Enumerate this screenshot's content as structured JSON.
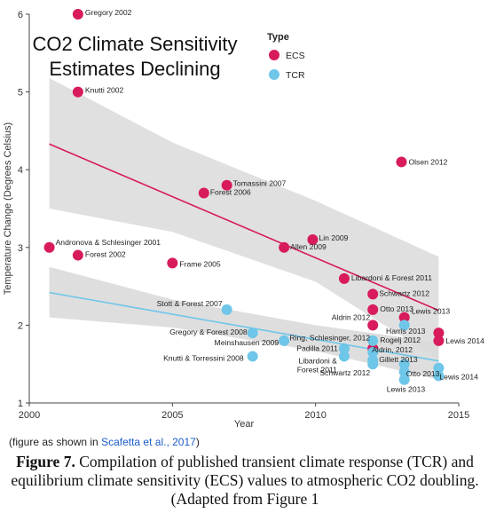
{
  "chart_data": {
    "type": "scatter",
    "title_lines": [
      "CO2 Climate Sensitivity",
      "Estimates Declining"
    ],
    "xlabel": "Year",
    "ylabel": "Temperature Change (Degrees Celsius)",
    "xlim": [
      2000,
      2015
    ],
    "ylim": [
      1,
      6
    ],
    "x_ticks": [
      2000,
      2005,
      2010,
      2015
    ],
    "y_ticks": [
      1,
      2,
      3,
      4,
      5,
      6
    ],
    "legend_title": "Type",
    "series": [
      {
        "name": "ECS",
        "color": "#d81b5c",
        "trend": [
          [
            2000.7,
            4.33
          ],
          [
            2014.3,
            2.19
          ]
        ],
        "band_upper": [
          [
            2000.7,
            5.18
          ],
          [
            2005,
            4.35
          ],
          [
            2010,
            3.6
          ],
          [
            2014.3,
            2.88
          ]
        ],
        "band_lower": [
          [
            2000.7,
            3.5
          ],
          [
            2005,
            3.2
          ],
          [
            2010,
            2.56
          ],
          [
            2014.3,
            1.56
          ]
        ],
        "points": [
          {
            "x": 2001.7,
            "y": 6.0,
            "label": "Gregory 2002"
          },
          {
            "x": 2001.7,
            "y": 5.0,
            "label": "Knutti 2002"
          },
          {
            "x": 2013.0,
            "y": 4.1,
            "label": "Olsen 2012"
          },
          {
            "x": 2006.9,
            "y": 3.8,
            "label": "Tomassini 2007"
          },
          {
            "x": 2006.1,
            "y": 3.7,
            "label": "Forest 2006"
          },
          {
            "x": 2009.9,
            "y": 3.1,
            "label": "Lin 2009"
          },
          {
            "x": 2000.7,
            "y": 3.0,
            "label": "Andronova & Schlesinger 2001"
          },
          {
            "x": 2008.9,
            "y": 3.0,
            "label": "Allen 2009"
          },
          {
            "x": 2001.7,
            "y": 2.9,
            "label": "Forest 2002"
          },
          {
            "x": 2005.0,
            "y": 2.8,
            "label": "Frame 2005"
          },
          {
            "x": 2011.0,
            "y": 2.6,
            "label": "Libardoni & Forest 2011"
          },
          {
            "x": 2012.0,
            "y": 2.4,
            "label": "Schwartz 2012"
          },
          {
            "x": 2012.0,
            "y": 2.2,
            "label": "Otto 2013"
          },
          {
            "x": 2013.1,
            "y": 2.1,
            "label": "Lewis 2013"
          },
          {
            "x": 2012.0,
            "y": 2.0,
            "label": "Aldrin 2012"
          },
          {
            "x": 2014.3,
            "y": 1.9,
            "label": "Harris 2013"
          },
          {
            "x": 2014.3,
            "y": 1.8,
            "label": "Lewis 2014"
          },
          {
            "x": 2012.0,
            "y": 1.7,
            "label": "Ring, Schlesinger, 2012"
          }
        ]
      },
      {
        "name": "TCR",
        "color": "#6ec6e8",
        "trend": [
          [
            2000.7,
            2.42
          ],
          [
            2014.3,
            1.54
          ]
        ],
        "band_upper": [
          [
            2000.7,
            2.75
          ],
          [
            2005,
            2.33
          ],
          [
            2010,
            2.0
          ],
          [
            2014.3,
            1.78
          ]
        ],
        "band_lower": [
          [
            2000.7,
            2.1
          ],
          [
            2005,
            1.97
          ],
          [
            2010,
            1.67
          ],
          [
            2014.3,
            1.3
          ]
        ],
        "points": [
          {
            "x": 2006.9,
            "y": 2.2,
            "label": "Stott & Forest 2007"
          },
          {
            "x": 2013.1,
            "y": 2.0,
            "label": ""
          },
          {
            "x": 2007.8,
            "y": 1.9,
            "label": "Gregory & Forest 2008"
          },
          {
            "x": 2012.0,
            "y": 1.8,
            "label": "Rogelj 2012"
          },
          {
            "x": 2008.9,
            "y": 1.8,
            "label": "Meinshausen 2009"
          },
          {
            "x": 2011.0,
            "y": 1.7,
            "label": "Padilla 2011"
          },
          {
            "x": 2012.0,
            "y": 1.65,
            "label": "Aldrin, 2012"
          },
          {
            "x": 2011.0,
            "y": 1.6,
            "label": "Libardoni & Forest 2011"
          },
          {
            "x": 2007.8,
            "y": 1.6,
            "label": "Knutti & Torressini 2008"
          },
          {
            "x": 2012.0,
            "y": 1.55,
            "label": "Gillett 2013"
          },
          {
            "x": 2013.1,
            "y": 1.5,
            "label": ""
          },
          {
            "x": 2012.0,
            "y": 1.5,
            "label": "Schwartz 2012"
          },
          {
            "x": 2014.3,
            "y": 1.45,
            "label": ""
          },
          {
            "x": 2013.1,
            "y": 1.4,
            "label": "Otto 2013"
          },
          {
            "x": 2014.3,
            "y": 1.35,
            "label": "Lewis 2014"
          },
          {
            "x": 2013.1,
            "y": 1.3,
            "label": "Lewis 2013"
          }
        ]
      }
    ]
  },
  "source_note": {
    "prefix": "(figure as shown in ",
    "link_text": "Scafetta et al., 2017",
    "suffix": ")"
  },
  "caption": {
    "bold": "Figure 7.",
    "text": " Compilation of published transient climate response (TCR) and equilibrium climate sensitivity (ECS) values to atmospheric CO2 doubling. (Adapted from Figure 1"
  }
}
